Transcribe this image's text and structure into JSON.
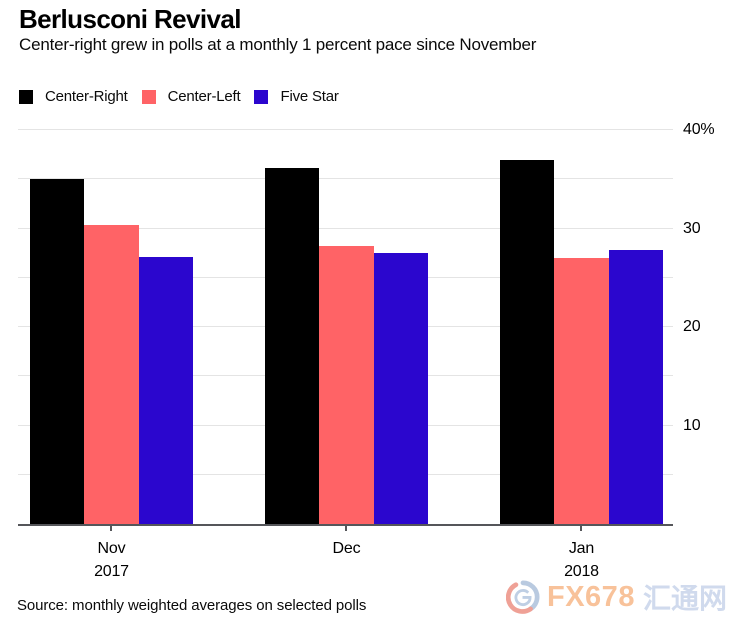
{
  "title": "Berlusconi Revival",
  "subtitle": "Center-right grew in polls at a monthly 1 percent pace since November",
  "chart_data": {
    "type": "bar",
    "categories": [
      "Nov",
      "Dec",
      "Jan"
    ],
    "category_sublabels": [
      "2017",
      "",
      "2018"
    ],
    "series": [
      {
        "name": "Center-Right",
        "color": "#000000",
        "values": [
          35.0,
          36.1,
          37.0
        ]
      },
      {
        "name": "Center-Left",
        "color": "#ff6366",
        "values": [
          30.4,
          28.2,
          27.0
        ]
      },
      {
        "name": "Five Star",
        "color": "#2b06ce",
        "values": [
          27.1,
          27.5,
          27.8
        ]
      }
    ],
    "ylabel": "",
    "xlabel": "",
    "ylim": [
      0,
      40
    ],
    "yticks": [
      10,
      20,
      30,
      40
    ],
    "ytick_labels": [
      "10",
      "20",
      "30",
      "40%"
    ],
    "gridline_interval": 5,
    "grid": true,
    "legend_position": "top-left",
    "gridline_color": "#e4e4e4",
    "axis_line_color": "#55565a"
  },
  "source": "Source: monthly weighted averages on selected polls",
  "watermark": {
    "logo": "swirl-globe",
    "brand": "FX678",
    "site_name": "汇通网"
  }
}
